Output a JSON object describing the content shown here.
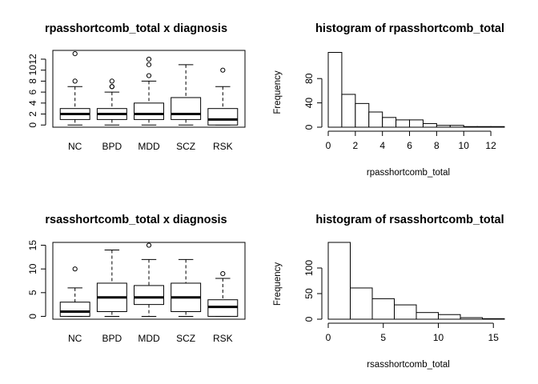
{
  "chart_data": [
    {
      "type": "boxplot",
      "title": "rpasshortcomb_total x diagnosis",
      "xlabel": "",
      "ylabel": "",
      "categories": [
        "NC",
        "BPD",
        "MDD",
        "SCZ",
        "RSK"
      ],
      "ylim": [
        -0.4,
        13.6
      ],
      "yticks": [
        0,
        2,
        4,
        6,
        8,
        10,
        12
      ],
      "ytick_labels": [
        "0",
        "2",
        "4",
        "6",
        "8",
        "10",
        "12"
      ],
      "boxes": [
        {
          "min": 0,
          "q1": 1,
          "median": 2,
          "q3": 3,
          "max": 7,
          "outliers": [
            8,
            13
          ]
        },
        {
          "min": 0,
          "q1": 1,
          "median": 2,
          "q3": 3,
          "max": 6,
          "outliers": [
            7,
            7,
            8
          ]
        },
        {
          "min": 0,
          "q1": 1,
          "median": 2,
          "q3": 4,
          "max": 8,
          "outliers": [
            9,
            11,
            12
          ]
        },
        {
          "min": 0,
          "q1": 1,
          "median": 2,
          "q3": 5,
          "max": 11,
          "outliers": []
        },
        {
          "min": 0,
          "q1": 0,
          "median": 1,
          "q3": 3,
          "max": 7,
          "outliers": [
            10
          ]
        }
      ]
    },
    {
      "type": "histogram",
      "title": "histogram of rpasshortcomb_total",
      "xlabel": "rpasshortcomb_total",
      "ylabel": "Frequency",
      "xlim": [
        0,
        13
      ],
      "ylim": [
        0,
        125
      ],
      "xticks": [
        0,
        2,
        4,
        6,
        8,
        10,
        12
      ],
      "yticks": [
        0,
        40,
        80
      ],
      "bins": [
        [
          0,
          1
        ],
        [
          1,
          2
        ],
        [
          2,
          3
        ],
        [
          3,
          4
        ],
        [
          4,
          5
        ],
        [
          5,
          6
        ],
        [
          6,
          7
        ],
        [
          7,
          8
        ],
        [
          8,
          9
        ],
        [
          9,
          10
        ],
        [
          10,
          11
        ],
        [
          11,
          12
        ],
        [
          12,
          13
        ]
      ],
      "counts": [
        123,
        54,
        39,
        25,
        16,
        12,
        12,
        6,
        3,
        3,
        1,
        1,
        1
      ]
    },
    {
      "type": "boxplot",
      "title": "rsasshortcomb_total x diagnosis",
      "xlabel": "",
      "ylabel": "",
      "categories": [
        "NC",
        "BPD",
        "MDD",
        "SCZ",
        "RSK"
      ],
      "ylim": [
        -0.6,
        15.6
      ],
      "yticks": [
        0,
        5,
        10,
        15
      ],
      "ytick_labels": [
        "0",
        "5",
        "10",
        "15"
      ],
      "boxes": [
        {
          "min": 0,
          "q1": 0,
          "median": 1,
          "q3": 3,
          "max": 6,
          "outliers": [
            10
          ]
        },
        {
          "min": 0,
          "q1": 1,
          "median": 4,
          "q3": 7,
          "max": 14,
          "outliers": []
        },
        {
          "min": 0,
          "q1": 2.5,
          "median": 4,
          "q3": 6.5,
          "max": 12,
          "outliers": [
            15
          ]
        },
        {
          "min": 0,
          "q1": 1,
          "median": 4,
          "q3": 7,
          "max": 12,
          "outliers": []
        },
        {
          "min": 0,
          "q1": 0,
          "median": 2,
          "q3": 3.5,
          "max": 8,
          "outliers": [
            9
          ]
        }
      ]
    },
    {
      "type": "histogram",
      "title": "histogram of rsasshortcomb_total",
      "xlabel": "rsasshortcomb_total",
      "ylabel": "Frequency",
      "xlim": [
        0,
        16
      ],
      "ylim": [
        0,
        150
      ],
      "xticks": [
        0,
        5,
        10,
        15
      ],
      "yticks": [
        0,
        50,
        100
      ],
      "bins": [
        [
          0,
          2
        ],
        [
          2,
          4
        ],
        [
          4,
          6
        ],
        [
          6,
          8
        ],
        [
          8,
          10
        ],
        [
          10,
          12
        ],
        [
          12,
          14
        ],
        [
          14,
          16
        ]
      ],
      "counts": [
        150,
        61,
        40,
        28,
        13,
        9,
        3,
        1
      ]
    }
  ]
}
